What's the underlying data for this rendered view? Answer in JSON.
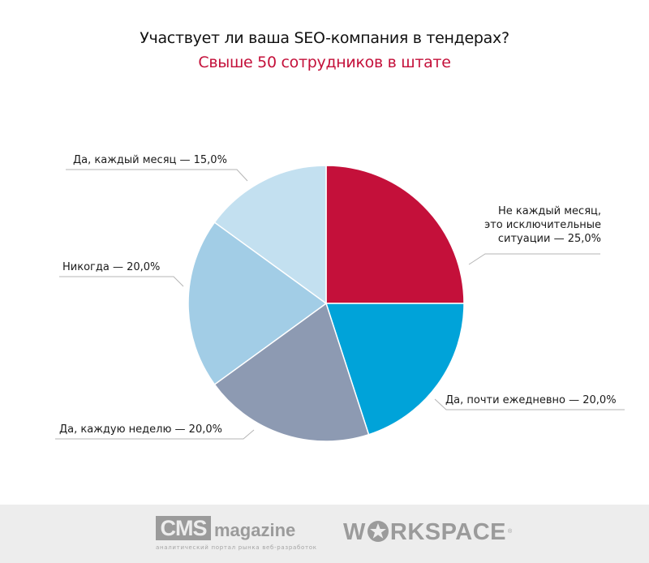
{
  "title": "Участвует ли ваша SEO-компания в тендерах?",
  "subtitle": "Свыше 50 сотрудников в штате",
  "chart_data": {
    "type": "pie",
    "title": "Участвует ли ваша SEO-компания в тендерах?",
    "subtitle": "Свыше 50 сотрудников в штате",
    "categories": [
      "Не каждый месяц, это исключительные ситуации",
      "Да, почти ежедневно",
      "Да, каждую неделю",
      "Никогда",
      "Да, каждый месяц"
    ],
    "values": [
      25.0,
      20.0,
      20.0,
      20.0,
      15.0
    ],
    "colors": [
      "#c4103a",
      "#00a3d9",
      "#8d9ab2",
      "#a2cde6",
      "#c3e0f0"
    ],
    "start_angle_deg": 0,
    "direction": "clockwise",
    "legend": "none (callout labels)"
  },
  "labels": {
    "slice0": [
      "Не каждый месяц,",
      "это исключительные",
      "ситуации —   25,0%"
    ],
    "slice1": "Да, почти ежедневно — 20,0%",
    "slice2": "Да, каждую неделю — 20,0%",
    "slice3": "Никогда — 20,0%",
    "slice4": "Да, каждый месяц — 15,0%"
  },
  "footer": {
    "cms_logo": "CMS",
    "cms_magazine": "magazine",
    "cms_tagline": "аналитический портал рынка веб-разработок",
    "workspace_pre": "W",
    "workspace_post": "RKSPACE",
    "workspace_reg": "®"
  }
}
